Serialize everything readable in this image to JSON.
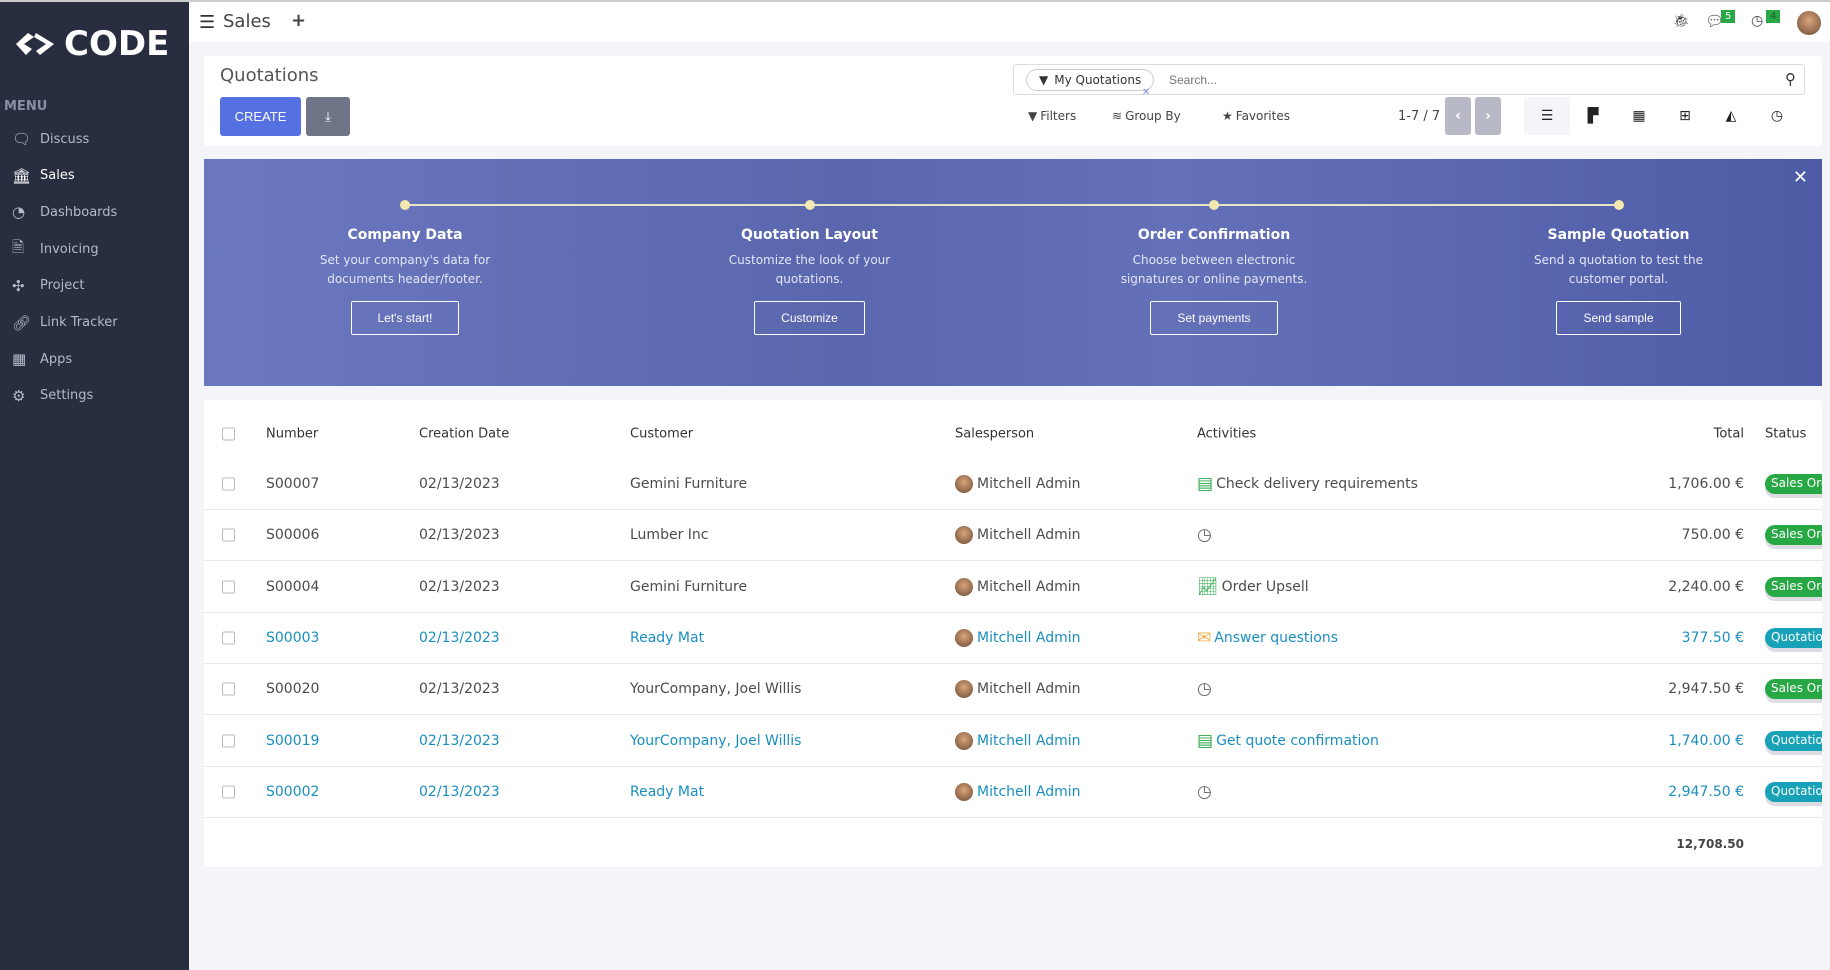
{
  "brand": "CODE",
  "sidebar": {
    "menu_label": "MENU",
    "items": [
      {
        "label": "Discuss",
        "icon": "chat-icon"
      },
      {
        "label": "Sales",
        "icon": "bank-icon"
      },
      {
        "label": "Dashboards",
        "icon": "gauge-icon"
      },
      {
        "label": "Invoicing",
        "icon": "invoice-icon"
      },
      {
        "label": "Project",
        "icon": "puzzle-icon"
      },
      {
        "label": "Link Tracker",
        "icon": "link-icon"
      },
      {
        "label": "Apps",
        "icon": "grid-icon"
      },
      {
        "label": "Settings",
        "icon": "gear-icon"
      }
    ],
    "active": "Sales"
  },
  "topbar": {
    "app": "Sales",
    "messages_count": "5",
    "activities_count": "4"
  },
  "control": {
    "title": "Quotations",
    "create": "CREATE",
    "facet": "My Quotations",
    "search_placeholder": "Search...",
    "filters": "Filters",
    "group_by": "Group By",
    "favorites": "Favorites",
    "pager": "1-7 / 7"
  },
  "banner": {
    "steps": [
      {
        "title": "Company Data",
        "text": "Set your company's data for documents header/footer.",
        "button": "Let's start!"
      },
      {
        "title": "Quotation Layout",
        "text": "Customize the look of your quotations.",
        "button": "Customize"
      },
      {
        "title": "Order Confirmation",
        "text": "Choose between electronic signatures or online payments.",
        "button": "Set payments"
      },
      {
        "title": "Sample Quotation",
        "text": "Send a quotation to test the customer portal.",
        "button": "Send sample"
      }
    ]
  },
  "table": {
    "headers": {
      "number": "Number",
      "date": "Creation Date",
      "customer": "Customer",
      "salesperson": "Salesperson",
      "activities": "Activities",
      "total": "Total",
      "status": "Status"
    },
    "rows": [
      {
        "number": "S00007",
        "date": "02/13/2023",
        "customer": "Gemini Furniture",
        "salesperson": "Mitchell Admin",
        "activity": "Check delivery requirements",
        "activity_icon": "list-icon",
        "total": "1,706.00 €",
        "status": "Sales Order",
        "highlight": false
      },
      {
        "number": "S00006",
        "date": "02/13/2023",
        "customer": "Lumber Inc",
        "salesperson": "Mitchell Admin",
        "activity": "",
        "activity_icon": "clock-icon",
        "total": "750.00 €",
        "status": "Sales Order",
        "highlight": false
      },
      {
        "number": "S00004",
        "date": "02/13/2023",
        "customer": "Gemini Furniture",
        "salesperson": "Mitchell Admin",
        "activity": "Order Upsell",
        "activity_icon": "chart-icon",
        "total": "2,240.00 €",
        "status": "Sales Order",
        "highlight": false
      },
      {
        "number": "S00003",
        "date": "02/13/2023",
        "customer": "Ready Mat",
        "salesperson": "Mitchell Admin",
        "activity": "Answer questions",
        "activity_icon": "envelope-icon",
        "total": "377.50 €",
        "status": "Quotation",
        "highlight": true
      },
      {
        "number": "S00020",
        "date": "02/13/2023",
        "customer": "YourCompany, Joel Willis",
        "salesperson": "Mitchell Admin",
        "activity": "",
        "activity_icon": "clock-icon",
        "total": "2,947.50 €",
        "status": "Sales Order",
        "highlight": false
      },
      {
        "number": "S00019",
        "date": "02/13/2023",
        "customer": "YourCompany, Joel Willis",
        "salesperson": "Mitchell Admin",
        "activity": "Get quote confirmation",
        "activity_icon": "list-icon",
        "total": "1,740.00 €",
        "status": "Quotation",
        "highlight": true
      },
      {
        "number": "S00002",
        "date": "02/13/2023",
        "customer": "Ready Mat",
        "salesperson": "Mitchell Admin",
        "activity": "",
        "activity_icon": "clock-icon",
        "total": "2,947.50 €",
        "status": "Quotation",
        "highlight": true
      }
    ],
    "sum": "12,708.50"
  },
  "colors": {
    "sidebar": "#282d40",
    "primary": "#5470e1",
    "sales_order": "#28a745",
    "quotation": "#17a2b8",
    "link": "#1a8fbf"
  }
}
